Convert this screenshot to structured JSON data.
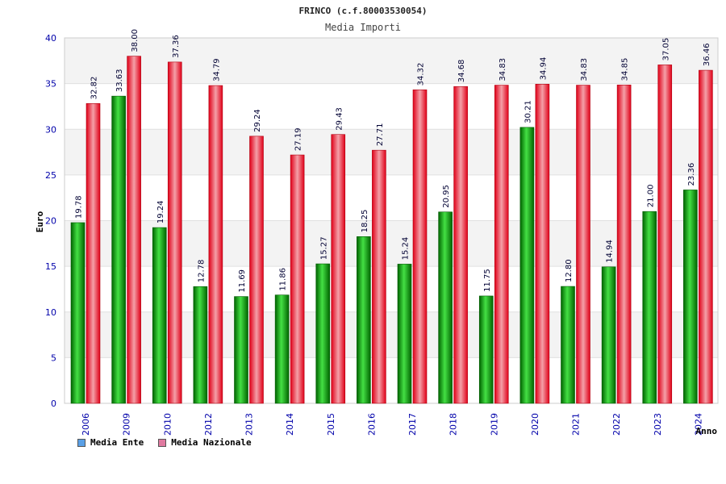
{
  "chart_data": {
    "type": "bar",
    "title": "FRINCO (c.f.80003530054)",
    "subtitle": "Media Importi",
    "ylabel": "Euro",
    "xlabel": "Anno",
    "ylim": [
      0,
      40
    ],
    "yticks": [
      0,
      5,
      10,
      15,
      20,
      25,
      30,
      35,
      40
    ],
    "categories": [
      "2006",
      "2009",
      "2010",
      "2012",
      "2013",
      "2014",
      "2015",
      "2016",
      "2017",
      "2018",
      "2019",
      "2020",
      "2021",
      "2022",
      "2023",
      "2024"
    ],
    "series": [
      {
        "name": "Media Ente",
        "color": "#00b400",
        "legend_color": "#5aa0e6",
        "values": [
          19.78,
          33.63,
          19.24,
          12.78,
          11.69,
          11.86,
          15.27,
          18.25,
          15.24,
          20.95,
          11.75,
          30.21,
          12.8,
          14.94,
          21.0,
          23.36
        ],
        "labels": [
          "19.78",
          "33.63",
          "19.24",
          "12.78",
          "11.69",
          "11.86",
          "15.27",
          "18.25",
          "15.24",
          "20.95",
          "11.75",
          "30.21",
          "12.80",
          "14.94",
          "21.00",
          "23.36"
        ]
      },
      {
        "name": "Media Nazionale",
        "color": "#e8102a",
        "legend_color": "#e07aa0",
        "values": [
          32.82,
          38.0,
          37.36,
          34.79,
          29.24,
          27.19,
          29.43,
          27.71,
          34.32,
          34.68,
          34.83,
          34.94,
          34.83,
          34.85,
          37.05,
          36.46
        ],
        "labels": [
          "32.82",
          "38.00",
          "37.36",
          "34.79",
          "29.24",
          "27.19",
          "29.43",
          "27.71",
          "34.32",
          "34.68",
          "34.83",
          "34.94",
          "34.83",
          "34.85",
          "37.05",
          "36.46"
        ]
      }
    ],
    "grid": true,
    "legend_position": "bottom-left"
  }
}
